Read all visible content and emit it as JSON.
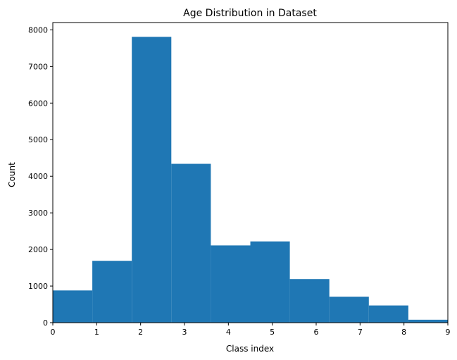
{
  "chart_data": {
    "type": "bar",
    "title": "Age Distribution in Dataset",
    "xlabel": "Class index",
    "ylabel": "Count",
    "xlim": [
      0,
      9
    ],
    "ylim": [
      0,
      8200
    ],
    "grid": false,
    "bin_edges": [
      0,
      0.9,
      1.8,
      2.7,
      3.6,
      4.5,
      5.4,
      6.3,
      7.2,
      8.1,
      9.0
    ],
    "values": [
      880,
      1690,
      7810,
      4340,
      2110,
      2220,
      1190,
      710,
      470,
      80
    ],
    "xticks": [
      0,
      1,
      2,
      3,
      4,
      5,
      6,
      7,
      8,
      9
    ],
    "yticks": [
      0,
      1000,
      2000,
      3000,
      4000,
      5000,
      6000,
      7000,
      8000
    ],
    "bar_color": "#1f77b4"
  }
}
